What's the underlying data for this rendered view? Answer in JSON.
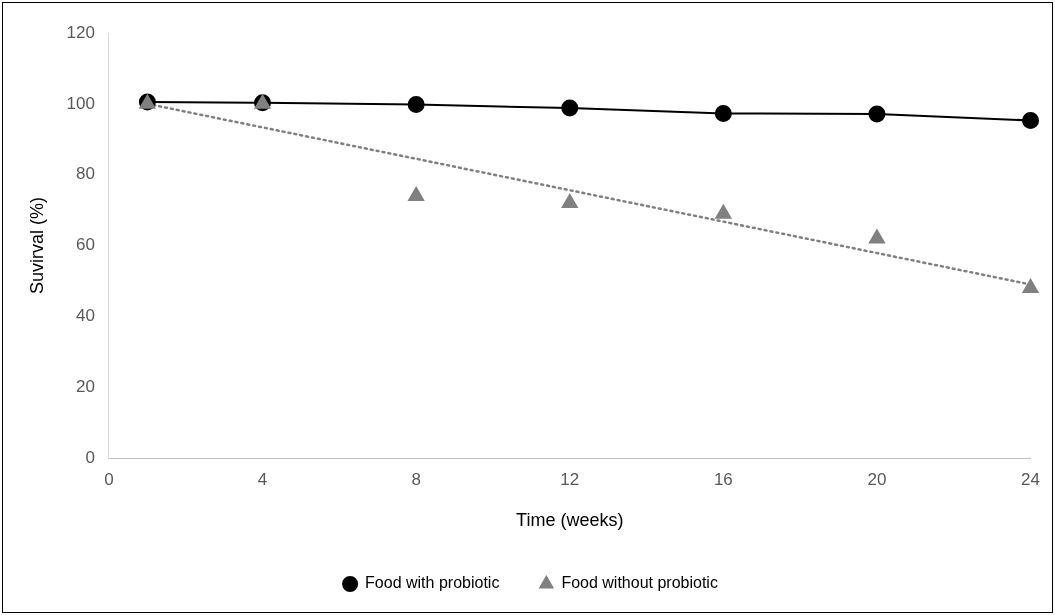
{
  "chart_data": {
    "type": "line",
    "xlabel": "Time (weeks)",
    "ylabel": "Suvirval (%)",
    "x": [
      1,
      4,
      8,
      12,
      16,
      20,
      24
    ],
    "series": [
      {
        "name": "Food with probiotic",
        "color": "#000000",
        "marker": "circle",
        "line_style": "solid",
        "values": [
          100.5,
          100.3,
          99.8,
          98.8,
          97.3,
          97.1,
          95.3
        ]
      },
      {
        "name": "Food without probiotic",
        "type": "scatter",
        "color": "#808080",
        "marker": "triangle",
        "values": [
          100,
          100,
          74,
          72,
          69,
          62,
          48
        ]
      },
      {
        "color": "#808080",
        "marker": "none",
        "line_style": "dotted",
        "x": [
          1,
          24
        ],
        "values": [
          100,
          49
        ]
      }
    ],
    "xlim": [
      0,
      24
    ],
    "xticks": [
      0,
      4,
      8,
      12,
      16,
      20,
      24
    ],
    "ylim": [
      0,
      120
    ],
    "yticks": [
      0,
      20,
      40,
      60,
      80,
      100,
      120
    ],
    "grid": false,
    "legend": "bottom"
  }
}
